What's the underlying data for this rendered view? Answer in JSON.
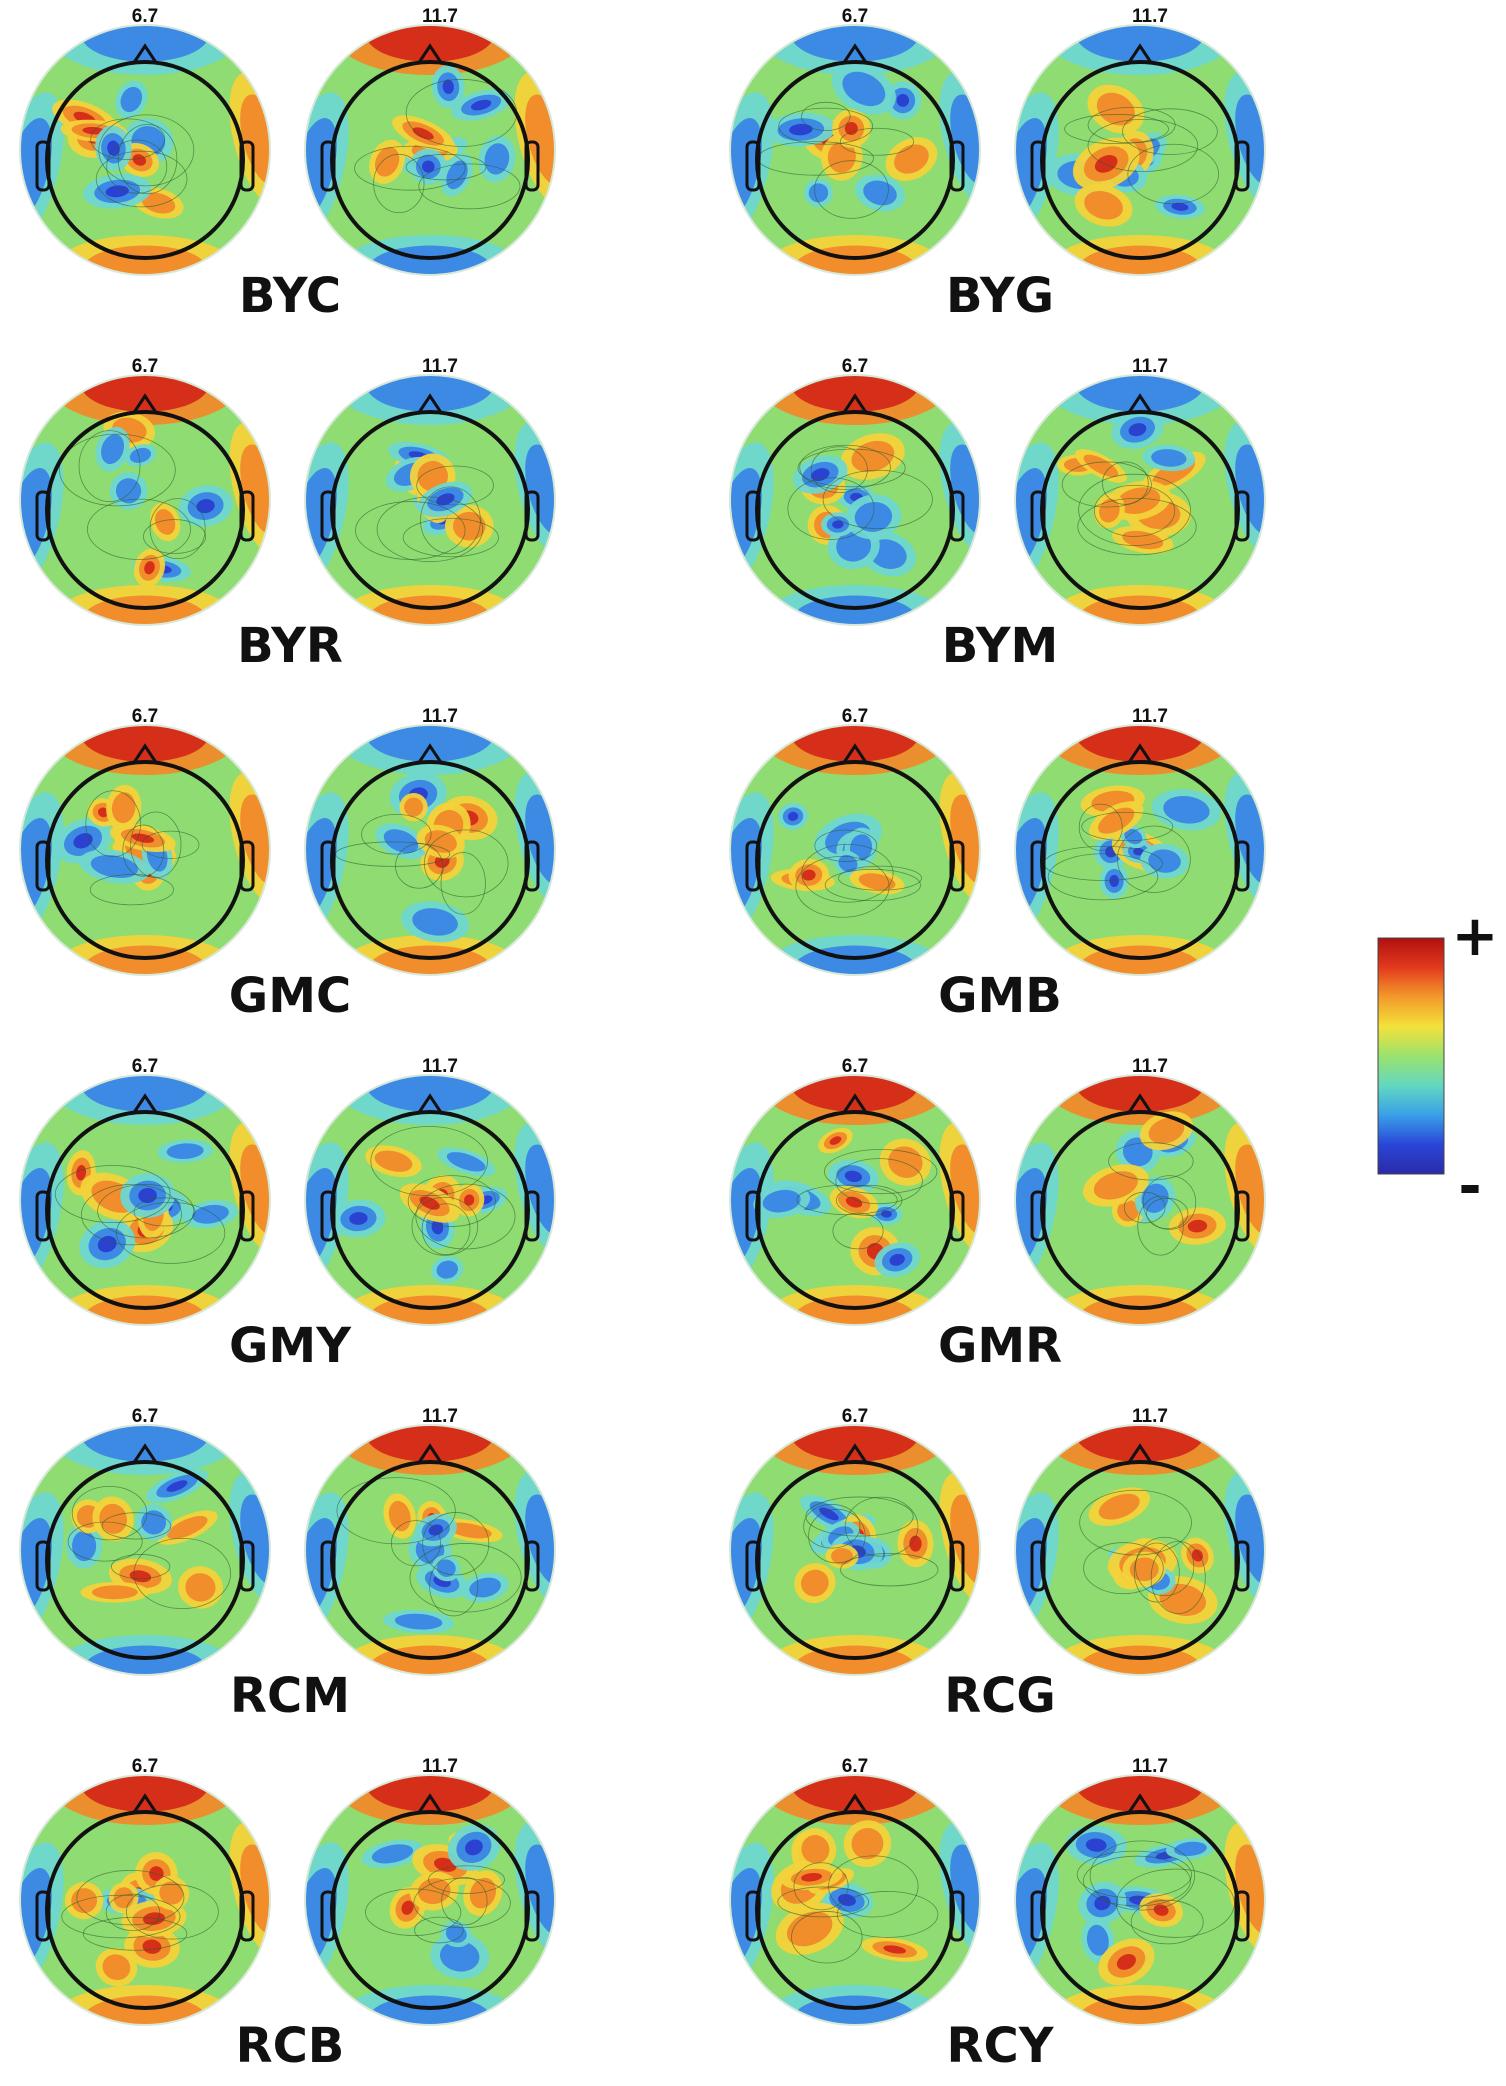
{
  "figure": {
    "panels": [
      {
        "condition": "BYC",
        "left_freq": "6.7",
        "right_freq": "11.7"
      },
      {
        "condition": "BYG",
        "left_freq": "6.7",
        "right_freq": "11.7"
      },
      {
        "condition": "BYR",
        "left_freq": "6.7",
        "right_freq": "11.7"
      },
      {
        "condition": "BYM",
        "left_freq": "6.7",
        "right_freq": "11.7"
      },
      {
        "condition": "GMC",
        "left_freq": "6.7",
        "right_freq": "11.7"
      },
      {
        "condition": "GMB",
        "left_freq": "6.7",
        "right_freq": "11.7"
      },
      {
        "condition": "GMY",
        "left_freq": "6.7",
        "right_freq": "11.7"
      },
      {
        "condition": "GMR",
        "left_freq": "6.7",
        "right_freq": "11.7"
      },
      {
        "condition": "RCM",
        "left_freq": "6.7",
        "right_freq": "11.7"
      },
      {
        "condition": "RCG",
        "left_freq": "6.7",
        "right_freq": "11.7"
      },
      {
        "condition": "RCB",
        "left_freq": "6.7",
        "right_freq": "11.7"
      },
      {
        "condition": "RCY",
        "left_freq": "6.7",
        "right_freq": "11.7"
      }
    ],
    "colorbar": {
      "max_label": "+",
      "min_label": "-",
      "colors": [
        "#b01010",
        "#e23a1e",
        "#f39a2a",
        "#f3e23a",
        "#9be26e",
        "#62d8c0",
        "#3aa0e8",
        "#2a46d8",
        "#2a2aa8"
      ]
    },
    "map_palette": {
      "background": "#8fdc72",
      "pos_strong": "#d42a18",
      "pos": "#f08a2a",
      "pos_weak": "#f3d23a",
      "neg_weak": "#6fd6d0",
      "neg": "#3a86e6",
      "neg_strong": "#2a3ed0"
    }
  }
}
